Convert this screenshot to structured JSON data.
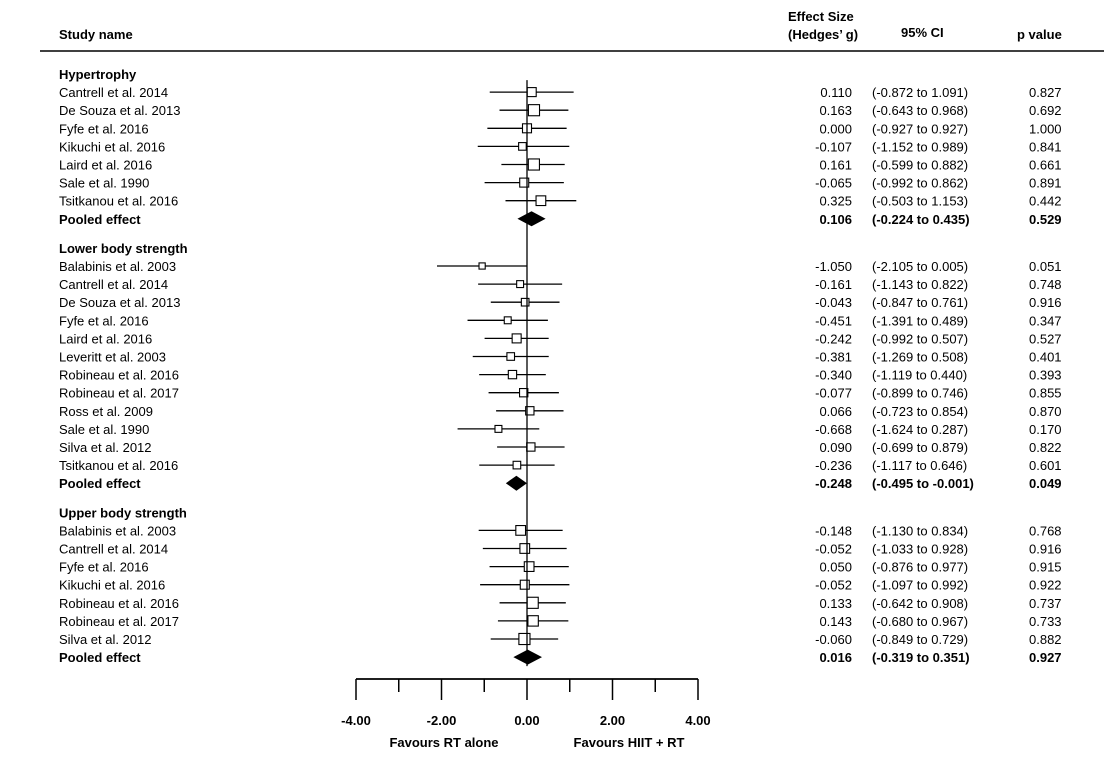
{
  "header": {
    "study_name": "Study name",
    "effect_size_line1": "Effect Size",
    "effect_size_line2": "(Hedges’ g)",
    "ci": "95% CI",
    "p_value": "p value"
  },
  "chart_data": {
    "type": "forest",
    "xlim": [
      -4,
      4
    ],
    "x_ticks": [
      "-4.00",
      "-2.00",
      "0.00",
      "2.00",
      "4.00"
    ],
    "x_tick_values": [
      -4,
      -2,
      0,
      2,
      4
    ],
    "left_label": "Favours RT alone",
    "right_label": "Favours HIIT + RT",
    "groups": [
      {
        "name": "Hypertrophy",
        "studies": [
          {
            "study": "Cantrell et al. 2014",
            "g": 0.11,
            "lower": -0.872,
            "upper": 1.091,
            "es": "0.110",
            "ci": "(-0.872 to 1.091)",
            "p": "0.827",
            "weight": 1.0
          },
          {
            "study": "De Souza et al. 2013",
            "g": 0.163,
            "lower": -0.643,
            "upper": 0.968,
            "es": "0.163",
            "ci": "(-0.643 to 0.968)",
            "p": "0.692",
            "weight": 1.3
          },
          {
            "study": "Fyfe et al. 2016",
            "g": 0.0,
            "lower": -0.927,
            "upper": 0.927,
            "es": "0.000",
            "ci": "(-0.927 to 0.927)",
            "p": "1.000",
            "weight": 1.0
          },
          {
            "study": "Kikuchi et al. 2016",
            "g": -0.107,
            "lower": -1.152,
            "upper": 0.989,
            "es": "-0.107",
            "ci": "(-1.152 to 0.989)",
            "p": "0.841",
            "weight": 0.8
          },
          {
            "study": "Laird et al. 2016",
            "g": 0.161,
            "lower": -0.599,
            "upper": 0.882,
            "es": "0.161",
            "ci": "(-0.599 to 0.882)",
            "p": "0.661",
            "weight": 1.3
          },
          {
            "study": "Sale et al. 1990",
            "g": -0.065,
            "lower": -0.992,
            "upper": 0.862,
            "es": "-0.065",
            "ci": "(-0.992 to 0.862)",
            "p": "0.891",
            "weight": 1.0
          },
          {
            "study": "Tsitkanou et al. 2016",
            "g": 0.325,
            "lower": -0.503,
            "upper": 1.153,
            "es": "0.325",
            "ci": "(-0.503 to 1.153)",
            "p": "0.442",
            "weight": 1.1
          }
        ],
        "pooled": {
          "label": "Pooled effect",
          "g": 0.106,
          "lower": -0.224,
          "upper": 0.435,
          "es": "0.106",
          "ci": "(-0.224 to 0.435)",
          "p": "0.529"
        }
      },
      {
        "name": "Lower body strength",
        "studies": [
          {
            "study": "Balabinis et al. 2003",
            "g": -1.05,
            "lower": -2.105,
            "upper": 0.005,
            "es": "-1.050",
            "ci": "(-2.105 to 0.005)",
            "p": "0.051",
            "weight": 0.6
          },
          {
            "study": "Cantrell et al. 2014",
            "g": -0.161,
            "lower": -1.143,
            "upper": 0.822,
            "es": "-0.161",
            "ci": "(-1.143 to 0.822)",
            "p": "0.748",
            "weight": 0.7
          },
          {
            "study": "De Souza et al. 2013",
            "g": -0.043,
            "lower": -0.847,
            "upper": 0.761,
            "es": "-0.043",
            "ci": "(-0.847 to 0.761)",
            "p": "0.916",
            "weight": 0.8
          },
          {
            "study": "Fyfe et al. 2016",
            "g": -0.451,
            "lower": -1.391,
            "upper": 0.489,
            "es": "-0.451",
            "ci": "(-1.391 to 0.489)",
            "p": "0.347",
            "weight": 0.7
          },
          {
            "study": "Laird et al. 2016",
            "g": -0.242,
            "lower": -0.992,
            "upper": 0.507,
            "es": "-0.242",
            "ci": "(-0.992 to 0.507)",
            "p": "0.527",
            "weight": 1.0
          },
          {
            "study": "Leveritt et al. 2003",
            "g": -0.381,
            "lower": -1.269,
            "upper": 0.508,
            "es": "-0.381",
            "ci": "(-1.269 to 0.508)",
            "p": "0.401",
            "weight": 0.8
          },
          {
            "study": "Robineau et al. 2016",
            "g": -0.34,
            "lower": -1.119,
            "upper": 0.44,
            "es": "-0.340",
            "ci": "(-1.119 to 0.440)",
            "p": "0.393",
            "weight": 0.9
          },
          {
            "study": "Robineau et al. 2017",
            "g": -0.077,
            "lower": -0.899,
            "upper": 0.746,
            "es": "-0.077",
            "ci": "(-0.899 to 0.746)",
            "p": "0.855",
            "weight": 0.9
          },
          {
            "study": "Ross et al. 2009",
            "g": 0.066,
            "lower": -0.723,
            "upper": 0.854,
            "es": "0.066",
            "ci": "(-0.723 to 0.854)",
            "p": "0.870",
            "weight": 0.9
          },
          {
            "study": "Sale et al. 1990",
            "g": -0.668,
            "lower": -1.624,
            "upper": 0.287,
            "es": "-0.668",
            "ci": "(-1.624 to 0.287)",
            "p": "0.170",
            "weight": 0.7
          },
          {
            "study": "Silva et al. 2012",
            "g": 0.09,
            "lower": -0.699,
            "upper": 0.879,
            "es": "0.090",
            "ci": "(-0.699 to 0.879)",
            "p": "0.822",
            "weight": 0.9
          },
          {
            "study": "Tsitkanou et al. 2016",
            "g": -0.236,
            "lower": -1.117,
            "upper": 0.646,
            "es": "-0.236",
            "ci": "(-1.117 to 0.646)",
            "p": "0.601",
            "weight": 0.8
          }
        ],
        "pooled": {
          "label": "Pooled effect",
          "g": -0.248,
          "lower": -0.495,
          "upper": -0.001,
          "es": "-0.248",
          "ci": "(-0.495 to -0.001)",
          "p": "0.049"
        }
      },
      {
        "name": "Upper body strength",
        "studies": [
          {
            "study": "Balabinis et al. 2003",
            "g": -0.148,
            "lower": -1.13,
            "upper": 0.834,
            "es": "-0.148",
            "ci": "(-1.130 to 0.834)",
            "p": "0.768",
            "weight": 1.1
          },
          {
            "study": "Cantrell et al. 2014",
            "g": -0.052,
            "lower": -1.033,
            "upper": 0.928,
            "es": "-0.052",
            "ci": "(-1.033 to 0.928)",
            "p": "0.916",
            "weight": 1.1
          },
          {
            "study": "Fyfe et al. 2016",
            "g": 0.05,
            "lower": -0.876,
            "upper": 0.977,
            "es": "0.050",
            "ci": "(-0.876 to 0.977)",
            "p": "0.915",
            "weight": 1.1
          },
          {
            "study": "Kikuchi et al. 2016",
            "g": -0.052,
            "lower": -1.097,
            "upper": 0.992,
            "es": "-0.052",
            "ci": "(-1.097 to 0.992)",
            "p": "0.922",
            "weight": 1.0
          },
          {
            "study": "Robineau et al. 2016",
            "g": 0.133,
            "lower": -0.642,
            "upper": 0.908,
            "es": "0.133",
            "ci": "(-0.642 to 0.908)",
            "p": "0.737",
            "weight": 1.3
          },
          {
            "study": "Robineau et al. 2017",
            "g": 0.143,
            "lower": -0.68,
            "upper": 0.967,
            "es": "0.143",
            "ci": "(-0.680 to 0.967)",
            "p": "0.733",
            "weight": 1.2
          },
          {
            "study": "Silva et al. 2012",
            "g": -0.06,
            "lower": -0.849,
            "upper": 0.729,
            "es": "-0.060",
            "ci": "(-0.849 to 0.729)",
            "p": "0.882",
            "weight": 1.3
          }
        ],
        "pooled": {
          "label": "Pooled effect",
          "g": 0.016,
          "lower": -0.319,
          "upper": 0.351,
          "es": "0.016",
          "ci": "(-0.319 to 0.351)",
          "p": "0.927"
        }
      }
    ]
  }
}
